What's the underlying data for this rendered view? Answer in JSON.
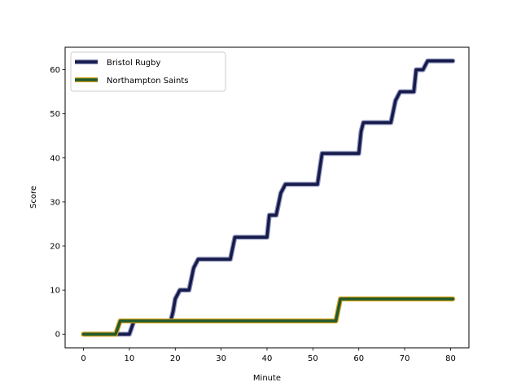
{
  "chart_data": {
    "type": "line",
    "title": "",
    "xlabel": "Minute",
    "ylabel": "Score",
    "xlim": [
      -4,
      84
    ],
    "ylim": [
      -3.1,
      65.1
    ],
    "xticks": [
      0,
      10,
      20,
      30,
      40,
      50,
      60,
      70,
      80
    ],
    "yticks": [
      0,
      10,
      20,
      30,
      40,
      50,
      60
    ],
    "grid": false,
    "legend_position": "upper left",
    "series": [
      {
        "name": "Bristol Rugby",
        "color": "#151a4a",
        "outline_color": "#8a8fb8",
        "x": [
          0,
          8,
          10,
          11,
          19,
          19.5,
          20,
          21,
          23,
          24,
          25,
          32,
          33,
          40,
          40.5,
          42,
          43,
          44,
          51,
          52,
          60,
          60.5,
          61,
          67,
          68,
          69,
          72,
          72.5,
          74,
          75,
          80.5
        ],
        "y": [
          0,
          0,
          0,
          3,
          3,
          5,
          8,
          10,
          10,
          15,
          17,
          17,
          22,
          22,
          27,
          27,
          32,
          34,
          34,
          41,
          41,
          46,
          48,
          48,
          53,
          55,
          55,
          60,
          60,
          62,
          62
        ]
      },
      {
        "name": "Northampton Saints",
        "color": "#1f5a2e",
        "outline_color": "#d4a017",
        "x": [
          0,
          7,
          8,
          55,
          56,
          80.5
        ],
        "y": [
          0,
          0,
          3,
          3,
          8,
          8
        ]
      }
    ]
  }
}
